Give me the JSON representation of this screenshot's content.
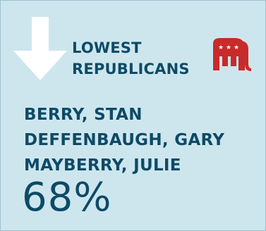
{
  "card": {
    "heading_line1": "LOWEST",
    "heading_line2": "REPUBLICANS",
    "names": [
      "BERRY, STAN",
      "DEFFENBAUGH, GARY",
      "MAYBERRY, JULIE"
    ],
    "percentage": "68%"
  },
  "icons": {
    "arrow": "down-arrow-icon",
    "party": "republican-elephant-icon"
  },
  "colors": {
    "background": "#cde6ee",
    "text": "#0e4a66",
    "arrow": "#ffffff",
    "elephant": "#c92a2a"
  }
}
